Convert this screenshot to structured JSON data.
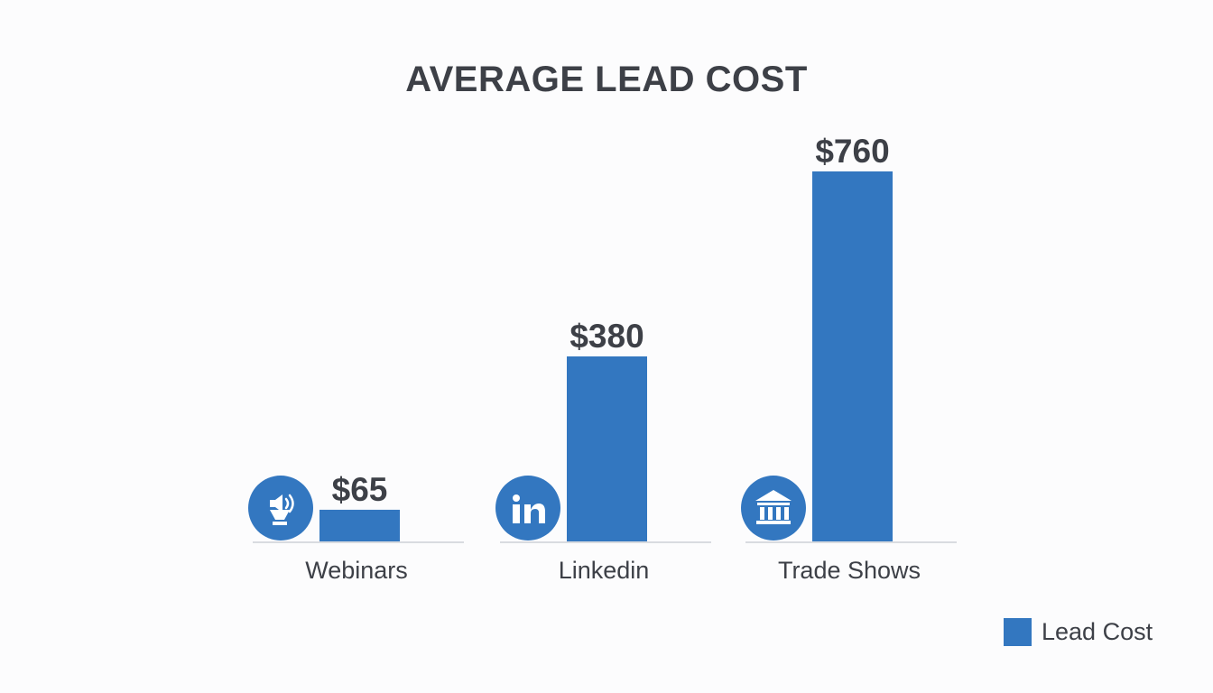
{
  "chart_data": {
    "type": "bar",
    "title": "AVERAGE LEAD COST",
    "categories": [
      "Webinars",
      "Linkedin",
      "Trade Shows"
    ],
    "series": [
      {
        "name": "Lead Cost",
        "values": [
          65,
          380,
          760
        ]
      }
    ],
    "data_labels": [
      "$65",
      "$380",
      "$760"
    ],
    "category_icons": [
      "webinar-speaker-icon",
      "linkedin-icon",
      "trade-show-building-icon"
    ],
    "xlabel": "",
    "ylabel": "",
    "ylim": [
      0,
      860
    ],
    "grid": false,
    "legend": {
      "placement": "bottom-right",
      "entries": [
        "Lead Cost"
      ]
    },
    "colors": {
      "bar": "#3377c0",
      "baseline": "#d9dbe0",
      "text": "#3d4047",
      "icon_bg": "#3377c0",
      "icon_fg": "#ffffff"
    }
  }
}
